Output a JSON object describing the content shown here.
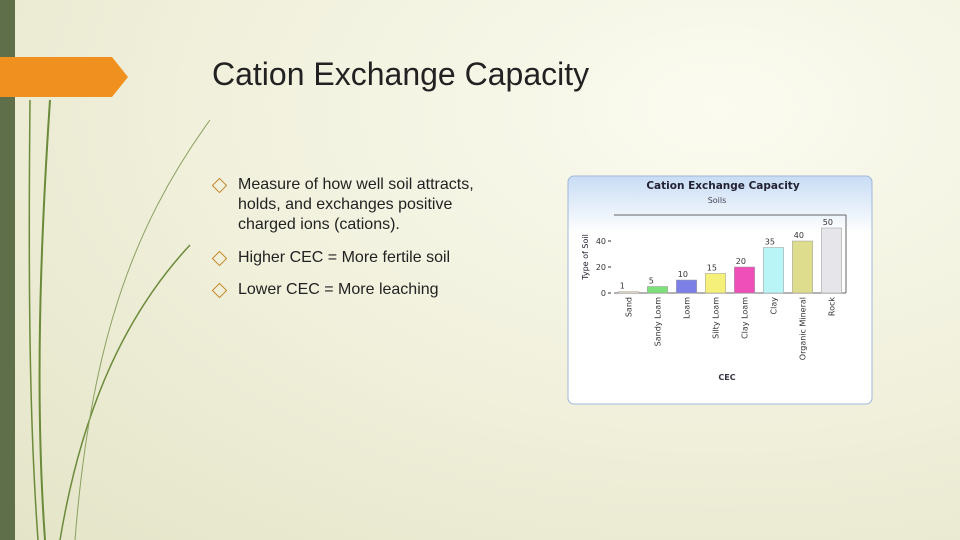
{
  "slide": {
    "title": "Cation Exchange Capacity",
    "bullets": [
      "Measure of how well soil attracts, holds, and exchanges positive charged ions (cations).",
      "Higher CEC = More fertile soil",
      "Lower CEC = More leaching"
    ]
  },
  "chart_data": {
    "type": "bar",
    "title": "Cation Exchange Capacity",
    "subtitle": "Soils",
    "y_label": "Type of Soil",
    "x_label": "CEC",
    "categories": [
      "Sand",
      "Sandy Loam",
      "Loam",
      "Silty Loam",
      "Clay Loam",
      "Clay",
      "Organic Mineral",
      "Rock"
    ],
    "values": [
      1,
      5,
      10,
      15,
      20,
      35,
      40,
      50
    ],
    "colors": [
      "#f3e9c8",
      "#7ee07a",
      "#7b7fe6",
      "#f4f07a",
      "#ee4fb8",
      "#b9f5f7",
      "#dedd8e",
      "#e6e6ea"
    ],
    "ylim": [
      0,
      60
    ],
    "yticks": [
      0,
      20,
      40
    ]
  }
}
